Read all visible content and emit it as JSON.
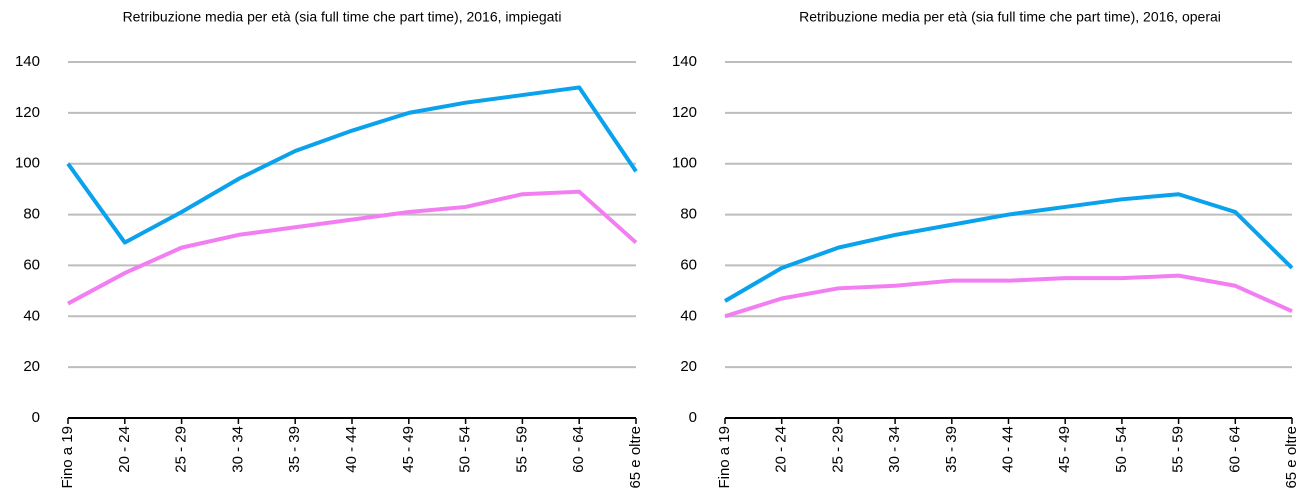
{
  "chart_data": [
    {
      "type": "line",
      "title": "Retribuzione media per età (sia full time che part time), 2016, impiegati",
      "categories": [
        "Fino a 19",
        "20 - 24",
        "25 - 29",
        "30 - 34",
        "35 - 39",
        "40 - 44",
        "45 - 49",
        "50 - 54",
        "55 - 59",
        "60 - 64",
        "65 e oltre"
      ],
      "series": [
        {
          "color": "#0aa2ec",
          "values": [
            100,
            69,
            81,
            94,
            105,
            113,
            120,
            124,
            127,
            130,
            97
          ]
        },
        {
          "color": "#f27ef2",
          "values": [
            45,
            57,
            67,
            72,
            75,
            78,
            81,
            83,
            88,
            89,
            69
          ]
        }
      ],
      "ylim": [
        0,
        140
      ],
      "yticks": [
        0,
        20,
        40,
        60,
        80,
        100,
        120,
        140
      ],
      "grid": true
    },
    {
      "type": "line",
      "title": "Retribuzione media per età (sia full time che part time), 2016, operai",
      "categories": [
        "Fino a 19",
        "20 - 24",
        "25 - 29",
        "30 - 34",
        "35 - 39",
        "40 - 44",
        "45 - 49",
        "50 - 54",
        "55 - 59",
        "60 - 64",
        "65 e oltre"
      ],
      "series": [
        {
          "color": "#0aa2ec",
          "values": [
            46,
            59,
            67,
            72,
            76,
            80,
            83,
            86,
            88,
            81,
            59
          ]
        },
        {
          "color": "#f27ef2",
          "values": [
            40,
            47,
            51,
            52,
            54,
            54,
            55,
            55,
            56,
            52,
            42
          ]
        }
      ],
      "ylim": [
        0,
        140
      ],
      "yticks": [
        0,
        20,
        40,
        60,
        80,
        100,
        120,
        140
      ],
      "grid": true
    }
  ]
}
